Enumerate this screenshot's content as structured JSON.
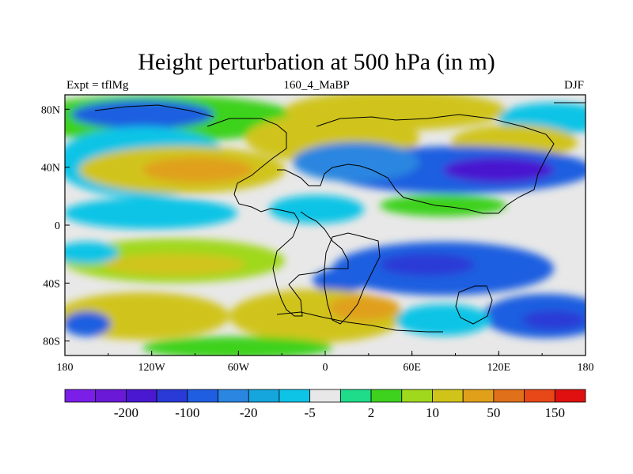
{
  "title": "Height perturbation at 500 hPa (in m)",
  "left_label": "Expt = tflMg",
  "center_label": "160_4_MaBP",
  "right_label": "DJF",
  "x_ticks": [
    "180",
    "120W",
    "60W",
    "0",
    "60E",
    "120E",
    "180"
  ],
  "y_ticks": [
    "80N",
    "40N",
    "0",
    "40S",
    "80S"
  ],
  "colorbar": {
    "colors": [
      "#7b1fe8",
      "#6a1ad6",
      "#4a18d0",
      "#2a3ad6",
      "#1f5ee0",
      "#2a86e0",
      "#14a6dc",
      "#0ec4e6",
      "#e8e8e8",
      "#1edc8a",
      "#3ed21e",
      "#a0d81e",
      "#d0c41a",
      "#e0a01a",
      "#e0701a",
      "#e84818",
      "#e01010"
    ],
    "labels": [
      {
        "text": "-200",
        "index": 1
      },
      {
        "text": "-100",
        "index": 3
      },
      {
        "text": "-20",
        "index": 5
      },
      {
        "text": "-5",
        "index": 7
      },
      {
        "text": "2",
        "index": 9
      },
      {
        "text": "10",
        "index": 11
      },
      {
        "text": "50",
        "index": 13
      },
      {
        "text": "150",
        "index": 15
      }
    ]
  }
}
